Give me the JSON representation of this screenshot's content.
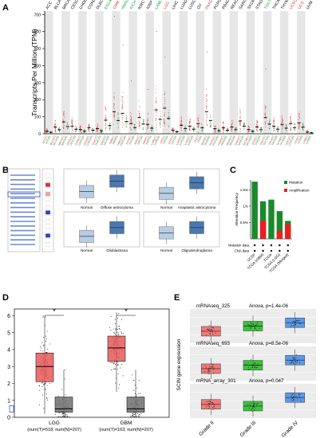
{
  "panels": {
    "a": {
      "letter": "A"
    },
    "b": {
      "letter": "B"
    },
    "c": {
      "letter": "C"
    },
    "d": {
      "letter": "D"
    },
    "e": {
      "letter": "E"
    }
  },
  "chart_data": [
    {
      "id": "A",
      "type": "scatter",
      "ylabel": "Transcripts Per Million (TPM)",
      "yticks": [
        0,
        100,
        200,
        300,
        400,
        500,
        600,
        700
      ],
      "ylim": [
        0,
        720
      ],
      "cancers": [
        {
          "name": "ACC",
          "color": "#000000"
        },
        {
          "name": "BLCA",
          "color": "#000000"
        },
        {
          "name": "BRCA",
          "color": "#000000"
        },
        {
          "name": "CESC",
          "color": "#000000"
        },
        {
          "name": "CHOL",
          "color": "#000000"
        },
        {
          "name": "COAD",
          "color": "#000000"
        },
        {
          "name": "DLBC",
          "color": "#000000"
        },
        {
          "name": "ESCA",
          "color": "#1a9a3a"
        },
        {
          "name": "GBM",
          "color": "#e03a3a"
        },
        {
          "name": "HNSC",
          "color": "#1a9a3a"
        },
        {
          "name": "KICH",
          "color": "#1a9a3a"
        },
        {
          "name": "KIRC",
          "color": "#000000"
        },
        {
          "name": "KIRP",
          "color": "#000000"
        },
        {
          "name": "LAML",
          "color": "#1a9a3a"
        },
        {
          "name": "LGG",
          "color": "#e03a3a"
        },
        {
          "name": "LIHC",
          "color": "#000000"
        },
        {
          "name": "LUAD",
          "color": "#000000"
        },
        {
          "name": "LUSC",
          "color": "#000000"
        },
        {
          "name": "OV",
          "color": "#000000"
        },
        {
          "name": "PAAD",
          "color": "#e03a3a"
        },
        {
          "name": "PCPG",
          "color": "#000000"
        },
        {
          "name": "PRAD",
          "color": "#000000"
        },
        {
          "name": "READ",
          "color": "#000000"
        },
        {
          "name": "SARC",
          "color": "#000000"
        },
        {
          "name": "SKCM",
          "color": "#000000"
        },
        {
          "name": "STAD",
          "color": "#000000"
        },
        {
          "name": "TGCT",
          "color": "#1a9a3a"
        },
        {
          "name": "THCA",
          "color": "#000000"
        },
        {
          "name": "THYM",
          "color": "#000000"
        },
        {
          "name": "UCEC",
          "color": "#e03a3a"
        },
        {
          "name": "UCS",
          "color": "#e03a3a"
        },
        {
          "name": "UVM",
          "color": "#000000"
        }
      ],
      "medians": [
        15,
        40,
        70,
        45,
        25,
        35,
        30,
        80,
        130,
        120,
        60,
        95,
        55,
        140,
        150,
        20,
        50,
        45,
        60,
        130,
        30,
        35,
        40,
        75,
        25,
        40,
        95,
        45,
        55,
        60,
        65,
        10
      ]
    },
    {
      "id": "B",
      "type": "table",
      "heat_rows": 16,
      "boxplots": [
        {
          "title": "Diffuse astrocytoma",
          "categories": [
            "Normal",
            "Diffuse astrocytoma"
          ]
        },
        {
          "title": "Anaplastic astrocytoma",
          "categories": [
            "Normal",
            "Anaplastic astrocytoma"
          ]
        },
        {
          "title": "Glioblastoma",
          "categories": [
            "Normal",
            "Glioblastoma"
          ]
        },
        {
          "title": "Oligodendroglioma",
          "categories": [
            "Normal",
            "Oligodendroglioma"
          ]
        }
      ]
    },
    {
      "id": "C",
      "type": "bar",
      "ylabel": "Alteration Frequency",
      "yticks": [
        "0.5%",
        "1%",
        "1.5%"
      ],
      "ylim": [
        0,
        1.8
      ],
      "legend": [
        {
          "name": "Mutation",
          "color": "#1a8a2a"
        },
        {
          "name": "Amplification",
          "color": "#e82020"
        }
      ],
      "row_labels": [
        "Mutation data",
        "CNA data"
      ],
      "categories": [
        "UCSF",
        "TCGA (GBM)",
        "TCGA",
        "TCGA (LGG)",
        "TCGA (Merged)"
      ],
      "series": [
        {
          "name": "Mutation",
          "values": [
            1.75,
            1.15,
            1.2,
            0.85,
            0.55
          ]
        },
        {
          "name": "Amplification",
          "values": [
            0,
            0.55,
            0,
            0.25,
            0.45
          ]
        }
      ]
    },
    {
      "id": "D",
      "type": "bar",
      "yticks": [
        0,
        1,
        2,
        3,
        4,
        5,
        6
      ],
      "ylim": [
        0,
        6.4
      ],
      "groups": [
        {
          "name": "LGG",
          "label": "LGG",
          "n_label": "(num(T)=518; num(N)=207)",
          "tumor": {
            "q1": 2.1,
            "median": 3.0,
            "q3": 3.8,
            "low": 0.2,
            "high": 6.0
          },
          "normal": {
            "q1": 0.3,
            "median": 0.5,
            "q3": 1.2,
            "low": 0.05,
            "high": 2.8
          }
        },
        {
          "name": "GBM",
          "label": "GBM",
          "n_label": "(num(T)=163; num(N)=207)",
          "tumor": {
            "q1": 3.3,
            "median": 4.1,
            "q3": 4.8,
            "low": 1.5,
            "high": 6.2
          },
          "normal": {
            "q1": 0.3,
            "median": 0.5,
            "q3": 1.2,
            "low": 0.05,
            "high": 2.8
          }
        }
      ],
      "significance": "*"
    },
    {
      "id": "E",
      "type": "bar",
      "ylabel": "SCIN gene expression",
      "categories": [
        "Grade II",
        "Grade III",
        "Grade IV"
      ],
      "subplots": [
        {
          "title": "mRNAseq_325",
          "stat": "Anova, p=1.4e-06",
          "medians": [
            0.35,
            0.5,
            0.6
          ]
        },
        {
          "title": "mRNAseq_693",
          "stat": "Anova, p=8.5e-06",
          "medians": [
            0.35,
            0.45,
            0.6
          ]
        },
        {
          "title": "mRNA_array_301",
          "stat": "Anova, p=0.047",
          "medians": [
            0.4,
            0.35,
            0.6
          ]
        }
      ],
      "colors": [
        "#f07a7a",
        "#3cc43c",
        "#5a9aea"
      ]
    }
  ]
}
